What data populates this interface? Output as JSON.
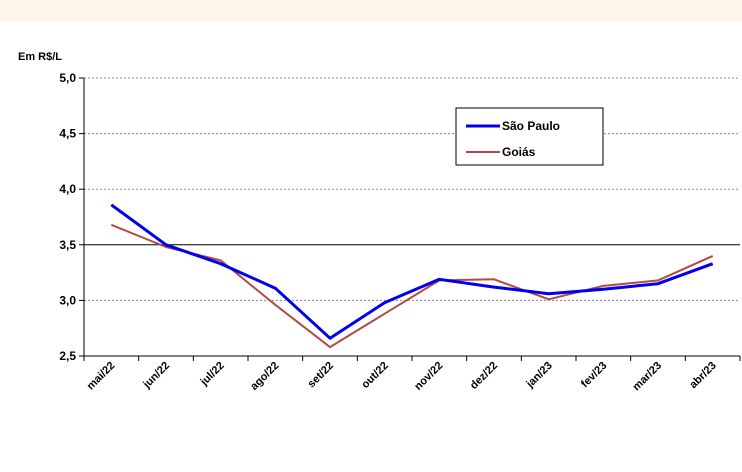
{
  "chart_data": {
    "type": "line",
    "ylabel": "Em R$/L",
    "ylim": [
      2.5,
      5.0
    ],
    "yticks": [
      "2,5",
      "3,0",
      "3,5",
      "4,0",
      "4,5",
      "5,0"
    ],
    "categories": [
      "mai/22",
      "jun/22",
      "jul/22",
      "ago/22",
      "set/22",
      "out/22",
      "nov/22",
      "dez/22",
      "jan/23",
      "fev/23",
      "mar/23",
      "abr/23"
    ],
    "series": [
      {
        "name": "São Paulo",
        "color": "#0000ee",
        "values": [
          3.86,
          3.5,
          3.33,
          3.11,
          2.66,
          2.98,
          3.19,
          3.12,
          3.06,
          3.1,
          3.15,
          3.33
        ]
      },
      {
        "name": "Goiás",
        "color": "#b24a47",
        "values": [
          3.68,
          3.48,
          3.36,
          2.96,
          2.58,
          2.88,
          3.18,
          3.19,
          3.01,
          3.13,
          3.18,
          3.4
        ]
      }
    ],
    "grid": true,
    "legend_position": "top-right"
  }
}
